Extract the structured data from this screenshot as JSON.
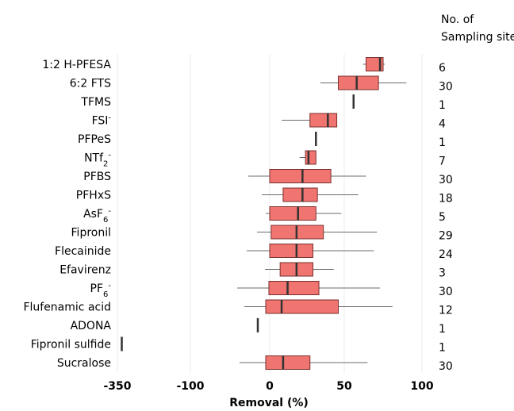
{
  "chart_data": {
    "type": "boxplot",
    "xlabel": "Removal (%)",
    "xlim": [
      -350,
      100
    ],
    "xticks": [
      -350,
      -100,
      0,
      50,
      100
    ],
    "right_header": [
      "No. of",
      "Sampling sites"
    ],
    "grid": true,
    "colors": {
      "box_fill": "#f07470",
      "box_stroke": "#7a2f2d",
      "median": "#333333",
      "whisker": "#6b6b6b"
    },
    "rows": [
      {
        "label": "1:2 H-PFESA",
        "sup": "",
        "sub": "",
        "n": "6",
        "min": 62,
        "q1": 64,
        "median": 73,
        "q3": 75,
        "max": 76
      },
      {
        "label": "6:2 FTS",
        "sup": "",
        "sub": "",
        "n": "30",
        "min": 34,
        "q1": 46,
        "median": 58,
        "q3": 72,
        "max": 90
      },
      {
        "label": "TFMS",
        "sup": "",
        "sub": "",
        "n": "1",
        "min": 56,
        "q1": 56,
        "median": 56,
        "q3": 56,
        "max": 56
      },
      {
        "label": "FSI",
        "sup": "-",
        "sub": "",
        "n": "4",
        "min": 8,
        "q1": 27,
        "median": 39,
        "q3": 45,
        "max": 45
      },
      {
        "label": "PFPeS",
        "sup": "",
        "sub": "",
        "n": "1",
        "min": 31,
        "q1": 31,
        "median": 31,
        "q3": 31,
        "max": 31
      },
      {
        "label": "NTf",
        "sup": "-",
        "sub": "2",
        "n": "7",
        "min": 20,
        "q1": 24,
        "median": 26,
        "q3": 31,
        "max": 31
      },
      {
        "label": "PFBS",
        "sup": "",
        "sub": "",
        "n": "30",
        "min": -27,
        "q1": 0,
        "median": 22,
        "q3": 41,
        "max": 64
      },
      {
        "label": "PFHxS",
        "sup": "",
        "sub": "",
        "n": "18",
        "min": -10,
        "q1": 9,
        "median": 22,
        "q3": 32,
        "max": 59
      },
      {
        "label": "AsF",
        "sup": "-",
        "sub": "6",
        "n": "5",
        "min": -5,
        "q1": 0,
        "median": 19,
        "q3": 31,
        "max": 48
      },
      {
        "label": "Fipronil",
        "sup": "",
        "sub": "",
        "n": "29",
        "min": -16,
        "q1": 1,
        "median": 18,
        "q3": 36,
        "max": 71
      },
      {
        "label": "Flecainide",
        "sup": "",
        "sub": "",
        "n": "24",
        "min": -29,
        "q1": 0,
        "median": 18,
        "q3": 29,
        "max": 69
      },
      {
        "label": "Efavirenz",
        "sup": "",
        "sub": "",
        "n": "3",
        "min": -6,
        "q1": 7,
        "median": 18,
        "q3": 29,
        "max": 43
      },
      {
        "label": "PF",
        "sup": "-",
        "sub": "6",
        "n": "30",
        "min": -41,
        "q1": -1,
        "median": 12,
        "q3": 33,
        "max": 73
      },
      {
        "label": "Flufenamic acid",
        "sup": "",
        "sub": "",
        "n": "12",
        "min": -32,
        "q1": -5,
        "median": 8,
        "q3": 46,
        "max": 81
      },
      {
        "label": "ADONA",
        "sup": "",
        "sub": "",
        "n": "1",
        "min": -15,
        "q1": -15,
        "median": -15,
        "q3": -15,
        "max": -15
      },
      {
        "label": "Fipronil sulfide",
        "sup": "",
        "sub": "",
        "n": "1",
        "min": -335,
        "q1": -335,
        "median": -335,
        "q3": -335,
        "max": -335
      },
      {
        "label": "Sucralose",
        "sup": "",
        "sub": "",
        "n": "30",
        "min": -38,
        "q1": -5,
        "median": 9,
        "q3": 27,
        "max": 65
      }
    ]
  }
}
